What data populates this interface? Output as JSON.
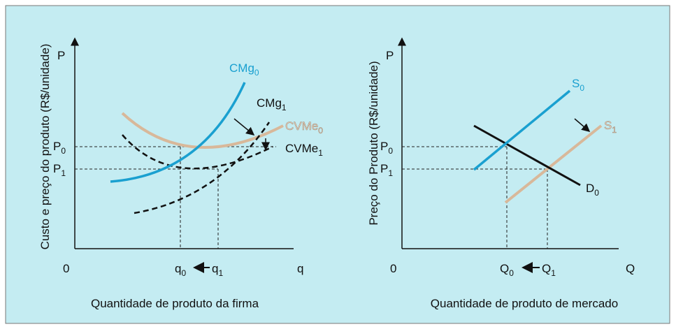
{
  "left": {
    "y_axis_title": "Custo e preço do produto (R$/unidade)",
    "x_axis_title": "Quantidade de produto da firma",
    "origin": "0",
    "y_axis_label": "P",
    "x_axis_label": "q",
    "price_labels": [
      {
        "base": "P",
        "sub": "0"
      },
      {
        "base": "P",
        "sub": "1"
      }
    ],
    "quantity_labels": [
      {
        "base": "q",
        "sub": "0"
      },
      {
        "base": "q",
        "sub": "1"
      }
    ],
    "curves": [
      {
        "base": "CMg",
        "sub": "0"
      },
      {
        "base": "CMg",
        "sub": "1"
      },
      {
        "base": "CVMe",
        "sub": "0"
      },
      {
        "base": "CVMe",
        "sub": "1"
      }
    ]
  },
  "right": {
    "y_axis_title": "Preço do Produto (R$/unidade)",
    "x_axis_title": "Quantidade de produto de mercado",
    "origin": "0",
    "y_axis_label": "P",
    "x_axis_label": "Q",
    "price_labels": [
      {
        "base": "P",
        "sub": "0"
      },
      {
        "base": "P",
        "sub": "1"
      }
    ],
    "quantity_labels": [
      {
        "base": "Q",
        "sub": "0"
      },
      {
        "base": "Q",
        "sub": "1"
      }
    ],
    "curves": [
      {
        "base": "S",
        "sub": "0"
      },
      {
        "base": "S",
        "sub": "1"
      },
      {
        "base": "D",
        "sub": "0"
      }
    ]
  }
}
